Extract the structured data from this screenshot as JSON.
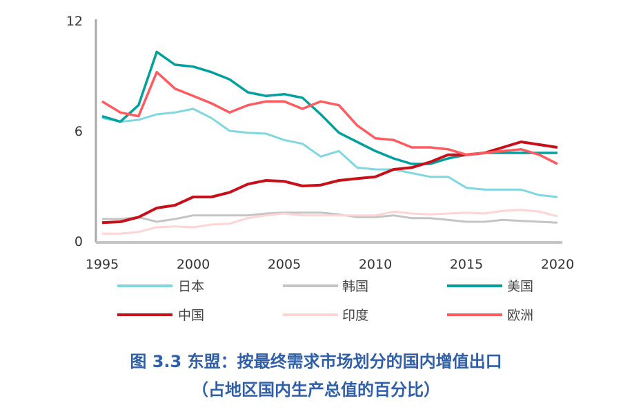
{
  "chart_data": {
    "type": "line",
    "title": "图 3.3 东盟：按最终需求市场划分的国内增值出口",
    "subtitle": "（占地区国内生产总值的百分比）",
    "xlabel": "",
    "ylabel": "",
    "ylim": [
      0,
      12
    ],
    "xlim": [
      1995,
      2020
    ],
    "y_ticks": [
      "0",
      "6",
      "12"
    ],
    "x_ticks": [
      "1995",
      "2000",
      "2005",
      "2010",
      "2015",
      "2020"
    ],
    "grid": false,
    "legend_position": "bottom",
    "x": [
      1995,
      1996,
      1997,
      1998,
      1999,
      2000,
      2001,
      2002,
      2003,
      2004,
      2005,
      2006,
      2007,
      2008,
      2009,
      2010,
      2011,
      2012,
      2013,
      2014,
      2015,
      2016,
      2017,
      2018,
      2019,
      2020
    ],
    "series": [
      {
        "name": "日本",
        "color": "#7fd8e0",
        "width": 3,
        "values": [
          6.7,
          6.5,
          6.6,
          6.9,
          7.0,
          7.2,
          6.7,
          6.0,
          5.9,
          5.85,
          5.5,
          5.3,
          4.6,
          4.9,
          4.0,
          3.9,
          3.9,
          3.7,
          3.5,
          3.5,
          2.9,
          2.8,
          2.8,
          2.8,
          2.5,
          2.4
        ]
      },
      {
        "name": "韩国",
        "color": "#c4c4c4",
        "width": 3,
        "values": [
          1.2,
          1.2,
          1.3,
          1.05,
          1.2,
          1.4,
          1.4,
          1.4,
          1.4,
          1.5,
          1.55,
          1.55,
          1.55,
          1.45,
          1.3,
          1.3,
          1.4,
          1.25,
          1.25,
          1.15,
          1.05,
          1.05,
          1.15,
          1.1,
          1.05,
          1.0
        ]
      },
      {
        "name": "美国",
        "color": "#00a09e",
        "width": 3.5,
        "values": [
          6.8,
          6.5,
          7.4,
          10.3,
          9.6,
          9.5,
          9.2,
          8.8,
          8.1,
          7.9,
          8.0,
          7.8,
          6.9,
          5.9,
          5.4,
          4.9,
          4.5,
          4.2,
          4.2,
          4.5,
          4.7,
          4.8,
          4.8,
          4.8,
          4.8,
          4.8
        ]
      },
      {
        "name": "中国",
        "color": "#c8101a",
        "width": 4,
        "values": [
          1.0,
          1.05,
          1.3,
          1.8,
          1.95,
          2.4,
          2.4,
          2.65,
          3.1,
          3.3,
          3.25,
          3.0,
          3.05,
          3.3,
          3.4,
          3.5,
          3.9,
          4.0,
          4.3,
          4.7,
          4.7,
          4.8,
          5.1,
          5.4,
          5.25,
          5.1
        ]
      },
      {
        "name": "印度",
        "color": "#ffd4d4",
        "width": 3,
        "values": [
          0.4,
          0.4,
          0.5,
          0.75,
          0.8,
          0.75,
          0.9,
          0.95,
          1.25,
          1.4,
          1.5,
          1.4,
          1.4,
          1.4,
          1.4,
          1.4,
          1.6,
          1.5,
          1.45,
          1.5,
          1.55,
          1.5,
          1.65,
          1.7,
          1.6,
          1.35
        ]
      },
      {
        "name": "欧洲",
        "color": "#ff5a60",
        "width": 3.5,
        "values": [
          7.6,
          7.0,
          6.8,
          9.2,
          8.3,
          7.9,
          7.5,
          7.0,
          7.4,
          7.6,
          7.6,
          7.2,
          7.6,
          7.4,
          6.3,
          5.6,
          5.5,
          5.1,
          5.1,
          5.0,
          4.7,
          4.8,
          4.9,
          5.0,
          4.7,
          4.2
        ]
      }
    ]
  }
}
